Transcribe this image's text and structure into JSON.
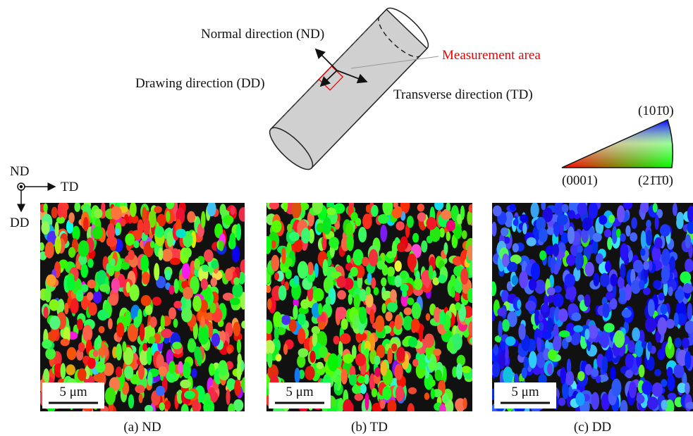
{
  "labels": {
    "normal": "Normal direction (ND)",
    "drawing": "Drawing direction (DD)",
    "measurement": "Measurement area",
    "transverse": "Transverse direction (TD)"
  },
  "color_key": {
    "top": "(101̄0)",
    "left": "(0001)",
    "right": "(21̄1̄0)"
  },
  "axes": {
    "nd": "ND",
    "td": "TD",
    "dd": "DD"
  },
  "panels": [
    {
      "scale": "5 μm",
      "caption": "(a) ND"
    },
    {
      "scale": "5 μm",
      "caption": "(b) TD"
    },
    {
      "scale": "5 μm",
      "caption": "(c) DD"
    }
  ]
}
